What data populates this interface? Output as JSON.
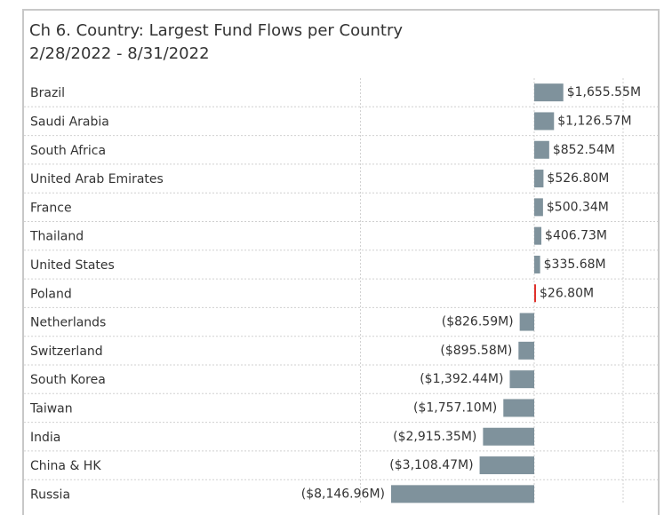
{
  "chart_data": {
    "type": "bar",
    "orientation": "horizontal",
    "title": "Ch 6.  Country:  Largest Fund Flows per Country",
    "subtitle": "2/28/2022 - 8/31/2022",
    "categories": [
      "Brazil",
      "Saudi Arabia",
      "South Africa",
      "United Arab Emirates",
      "France",
      "Thailand",
      "United States",
      "Poland",
      "Netherlands",
      "Switzerland",
      "South Korea",
      "Taiwan",
      "India",
      "China & HK",
      "Russia"
    ],
    "values": [
      1655.55,
      1126.57,
      852.54,
      526.8,
      500.34,
      406.73,
      335.68,
      26.8,
      -826.59,
      -895.58,
      -1392.44,
      -1757.1,
      -2915.35,
      -3108.47,
      -8146.96
    ],
    "data_labels": [
      "$1,655.55M",
      "$1,126.57M",
      "$852.54M",
      "$526.80M",
      "$500.34M",
      "$406.73M",
      "$335.68M",
      "$26.80M",
      "($826.59M)",
      "($895.58M)",
      "($1,392.44M)",
      "($1,757.10M)",
      "($2,915.35M)",
      "($3,108.47M)",
      "($8,146.96M)"
    ],
    "unit": "M",
    "xlim": [
      -9000,
      5000
    ],
    "grid": true,
    "colors": {
      "bar": "#7f929c",
      "highlight": "#e0312b",
      "grid": "#d0d0d0"
    },
    "highlight_index": 7
  }
}
